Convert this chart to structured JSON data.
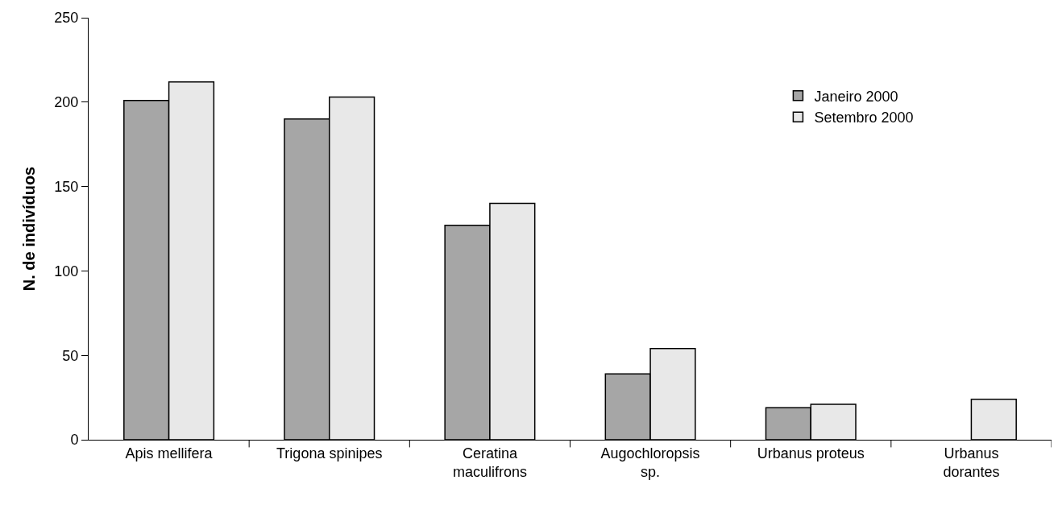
{
  "chart_data": {
    "type": "bar",
    "ylabel": "N. de indivíduos",
    "categories": [
      "Apis mellifera",
      "Trigona spinipes",
      "Ceratina maculifrons",
      "Augochloropsis sp.",
      "Urbanus proteus",
      "Urbanus dorantes"
    ],
    "series": [
      {
        "name": "Janeiro 2000",
        "color": "#a6a6a6",
        "values": [
          201,
          190,
          127,
          39,
          19,
          null
        ]
      },
      {
        "name": "Setembro 2000",
        "color": "#e8e8e8",
        "values": [
          212,
          203,
          140,
          54,
          21,
          24
        ]
      }
    ],
    "ylim": [
      0,
      250
    ],
    "yticks": [
      0,
      50,
      100,
      150,
      200,
      250
    ],
    "grid": false,
    "legend": "top right"
  }
}
